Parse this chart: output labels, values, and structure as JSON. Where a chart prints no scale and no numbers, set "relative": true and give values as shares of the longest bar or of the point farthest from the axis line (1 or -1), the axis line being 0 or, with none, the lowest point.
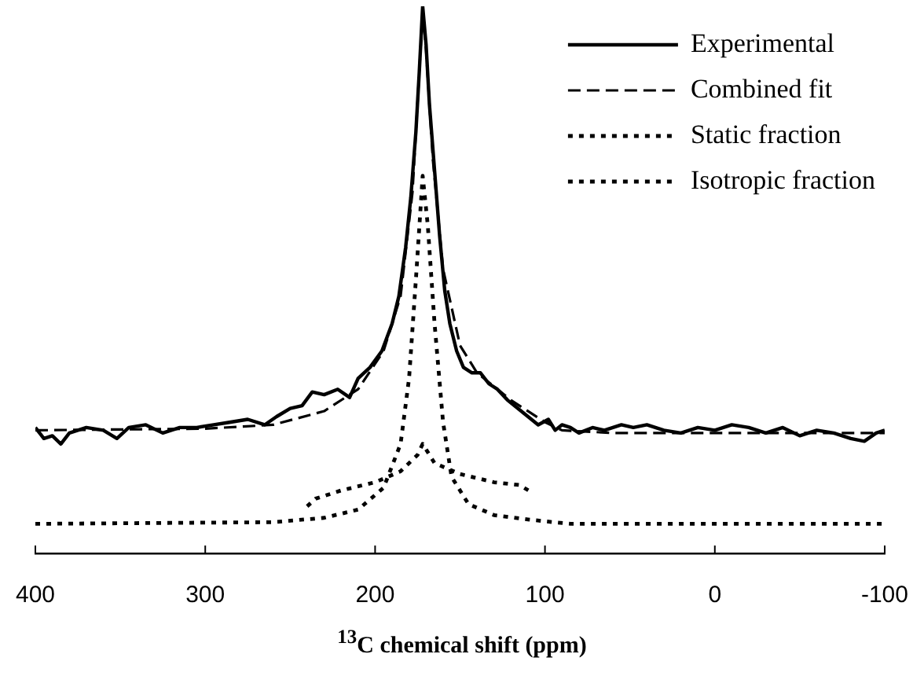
{
  "chart_data": {
    "type": "line",
    "relative": true,
    "xlabel": "$^{13}$C chemical shift (ppm)",
    "xlim": [
      400,
      -100
    ],
    "xticks": [
      400,
      300,
      200,
      100,
      0,
      -100
    ],
    "grid": false,
    "legend": "top right",
    "marker": "none",
    "series": [
      {
        "name": "Experimental",
        "color": "#000000",
        "line_style": "solid",
        "x": [
          400,
          395,
          390,
          385,
          380,
          370,
          360,
          352,
          345,
          335,
          325,
          315,
          305,
          295,
          285,
          275,
          265,
          258,
          250,
          243,
          237,
          230,
          222,
          215,
          210,
          203,
          196,
          190,
          186,
          182,
          179,
          176,
          174,
          172,
          170,
          168,
          165,
          162,
          159,
          156,
          152,
          148,
          143,
          138,
          133,
          128,
          122,
          116,
          110,
          104,
          98,
          94,
          90,
          85,
          80,
          72,
          65,
          55,
          48,
          40,
          30,
          20,
          10,
          0,
          -10,
          -20,
          -30,
          -40,
          -50,
          -60,
          -70,
          -80,
          -88,
          -95,
          -100
        ],
        "values": [
          0.23,
          0.21,
          0.215,
          0.2,
          0.22,
          0.23,
          0.225,
          0.21,
          0.23,
          0.235,
          0.22,
          0.23,
          0.23,
          0.235,
          0.24,
          0.245,
          0.235,
          0.25,
          0.265,
          0.27,
          0.295,
          0.29,
          0.3,
          0.285,
          0.32,
          0.34,
          0.37,
          0.42,
          0.47,
          0.56,
          0.65,
          0.77,
          0.88,
          1,
          0.93,
          0.82,
          0.7,
          0.58,
          0.48,
          0.42,
          0.37,
          0.34,
          0.33,
          0.33,
          0.31,
          0.3,
          0.28,
          0.265,
          0.25,
          0.235,
          0.245,
          0.225,
          0.235,
          0.23,
          0.22,
          0.23,
          0.225,
          0.235,
          0.23,
          0.235,
          0.225,
          0.22,
          0.23,
          0.225,
          0.235,
          0.23,
          0.22,
          0.23,
          0.215,
          0.225,
          0.22,
          0.21,
          0.205,
          0.22,
          0.225
        ]
      },
      {
        "name": "Combined fit",
        "color": "#000000",
        "line_style": "dashed",
        "x": [
          400,
          300,
          260,
          230,
          210,
          195,
          185,
          178,
          174,
          172,
          170,
          166,
          160,
          150,
          140,
          120,
          100,
          90,
          60,
          0,
          -100
        ],
        "values": [
          0.225,
          0.228,
          0.235,
          0.26,
          0.3,
          0.37,
          0.47,
          0.66,
          0.88,
          0.99,
          0.92,
          0.72,
          0.52,
          0.38,
          0.33,
          0.28,
          0.24,
          0.225,
          0.22,
          0.22,
          0.22
        ]
      },
      {
        "name": "Static fraction",
        "color": "#000000",
        "line_style": "dotted",
        "x": [
          240,
          235,
          220,
          200,
          185,
          175,
          172,
          165,
          150,
          130,
          115,
          107
        ],
        "values": [
          0.086,
          0.1,
          0.115,
          0.13,
          0.15,
          0.18,
          0.2,
          0.165,
          0.145,
          0.13,
          0.125,
          0.11
        ]
      },
      {
        "name": "Isotropic fraction",
        "color": "#000000",
        "line_style": "dotted",
        "x": [
          400,
          260,
          230,
          210,
          195,
          185,
          180,
          176,
          172,
          169,
          165,
          160,
          155,
          145,
          130,
          110,
          95,
          85,
          -100
        ],
        "values": [
          0.054,
          0.057,
          0.065,
          0.08,
          0.12,
          0.2,
          0.32,
          0.5,
          0.69,
          0.6,
          0.42,
          0.24,
          0.14,
          0.09,
          0.07,
          0.062,
          0.057,
          0.054,
          0.054
        ]
      }
    ]
  }
}
